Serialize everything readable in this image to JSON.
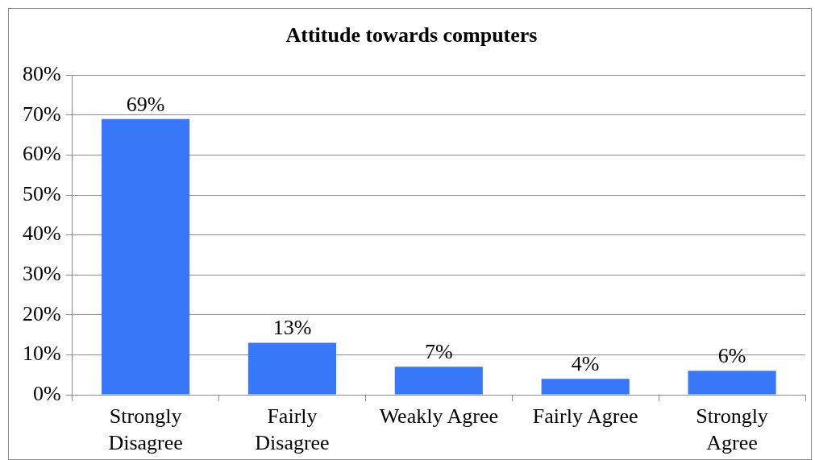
{
  "chart_data": {
    "type": "bar",
    "title": "Attitude towards computers",
    "categories": [
      "Strongly Disagree",
      "Fairly Disagree",
      "Weakly Agree",
      "Fairly Agree",
      "Strongly Agree"
    ],
    "values": [
      69,
      13,
      7,
      4,
      6
    ],
    "color": "#3878f8",
    "value_labels": [
      "69%",
      "13%",
      "7%",
      "4%",
      "6%"
    ],
    "ylim": [
      0,
      80
    ],
    "yticks": [
      {
        "value": 0,
        "label": "0%"
      },
      {
        "value": 10,
        "label": "10%"
      },
      {
        "value": 20,
        "label": "20%"
      },
      {
        "value": 30,
        "label": "30%"
      },
      {
        "value": 40,
        "label": "40%"
      },
      {
        "value": 50,
        "label": "50%"
      },
      {
        "value": 60,
        "label": "60%"
      },
      {
        "value": 70,
        "label": "70%"
      },
      {
        "value": 80,
        "label": "80%"
      }
    ],
    "grid": "y",
    "legend": false
  }
}
